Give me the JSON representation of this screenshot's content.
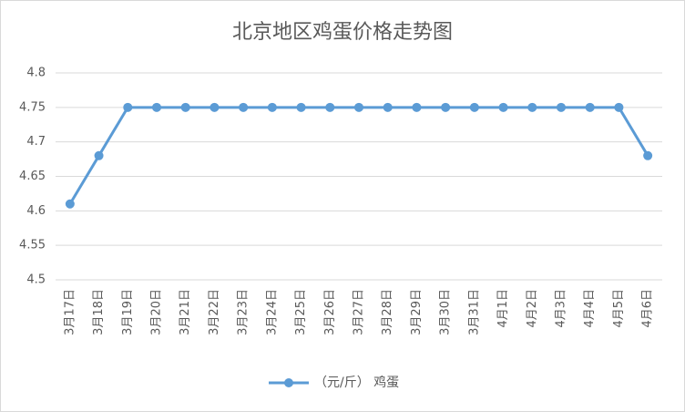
{
  "chart_data": {
    "type": "line",
    "title": "北京地区鸡蛋价格走势图",
    "categories": [
      "3月17日",
      "3月18日",
      "3月19日",
      "3月20日",
      "3月21日",
      "3月22日",
      "3月23日",
      "3月24日",
      "3月25日",
      "3月26日",
      "3月27日",
      "3月28日",
      "3月29日",
      "3月30日",
      "3月31日",
      "4月1日",
      "4月2日",
      "4月3日",
      "4月4日",
      "4月5日",
      "4月6日"
    ],
    "series": [
      {
        "name": "（元/斤） 鸡蛋",
        "color": "#5b9bd5",
        "values": [
          4.61,
          4.68,
          4.75,
          4.75,
          4.75,
          4.75,
          4.75,
          4.75,
          4.75,
          4.75,
          4.75,
          4.75,
          4.75,
          4.75,
          4.75,
          4.75,
          4.75,
          4.75,
          4.75,
          4.75,
          4.68
        ]
      }
    ],
    "ylim": [
      4.5,
      4.8
    ],
    "yticks": [
      4.5,
      4.55,
      4.6,
      4.65,
      4.7,
      4.75,
      4.8
    ],
    "grid": true,
    "legend": "bottom"
  }
}
